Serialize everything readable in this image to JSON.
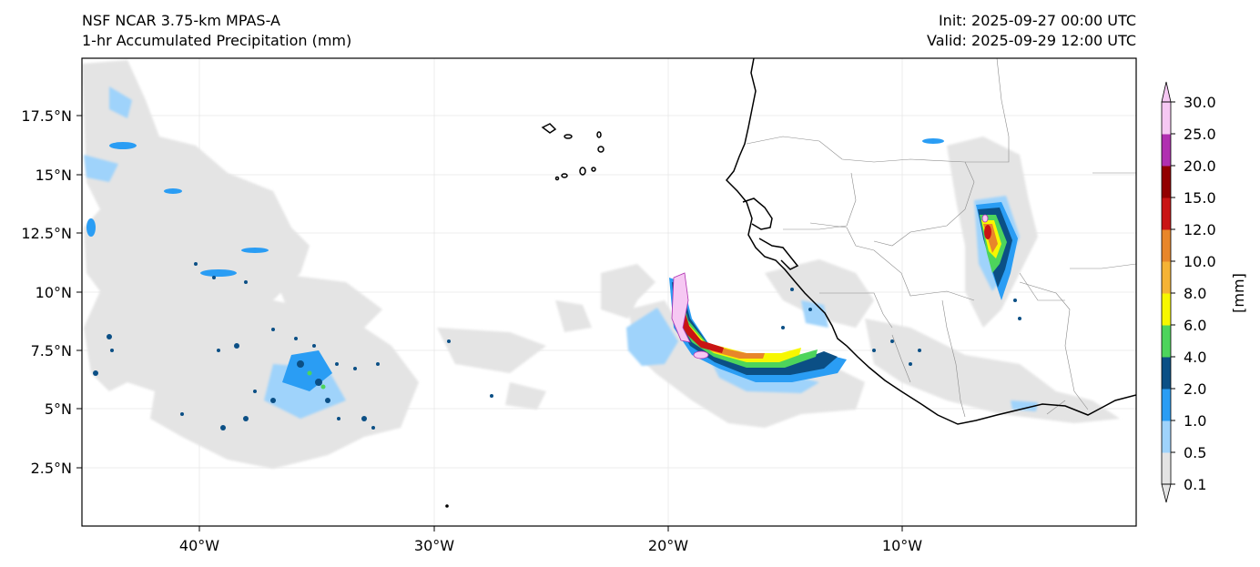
{
  "header": {
    "model_title": "NSF NCAR 3.75-km MPAS-A",
    "field_title": "1-hr Accumulated Precipitation (mm)",
    "init_label": "Init: 2025-09-27 00:00 UTC",
    "valid_label": "Valid: 2025-09-29 12:00 UTC"
  },
  "map": {
    "lat_ticks": [
      "17.5°N",
      "15°N",
      "12.5°N",
      "10°N",
      "7.5°N",
      "5°N",
      "2.5°N"
    ],
    "lon_ticks": [
      "40°W",
      "30°W",
      "20°W",
      "10°W"
    ]
  },
  "colorbar": {
    "unit_label": "[mm]",
    "levels": [
      "0.1",
      "0.5",
      "1.0",
      "2.0",
      "4.0",
      "6.0",
      "8.0",
      "10.0",
      "12.0",
      "15.0",
      "20.0",
      "25.0",
      "30.0"
    ],
    "colors": [
      "#e4e4e4",
      "#9fd3fb",
      "#2a9df4",
      "#0b4f85",
      "#4dd45c",
      "#f7f700",
      "#f5b335",
      "#e8862a",
      "#c91414",
      "#920000",
      "#b030b0",
      "#f6c8f3"
    ]
  }
}
